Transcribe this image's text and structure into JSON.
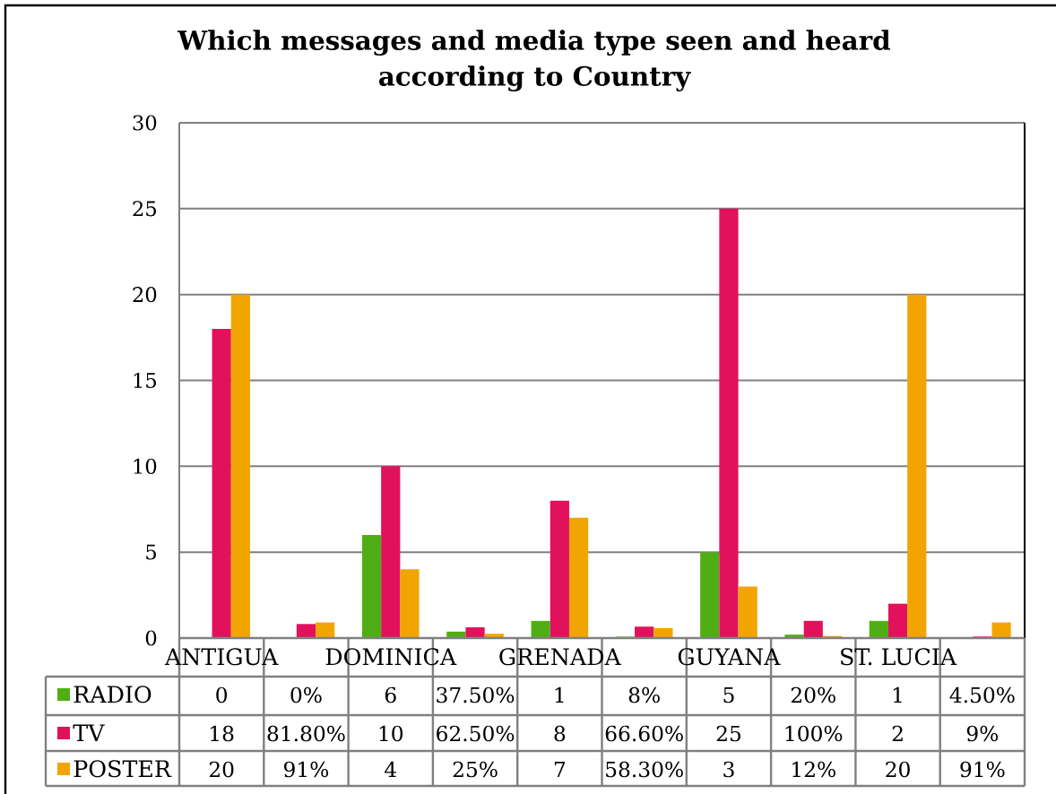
{
  "chart_data": {
    "type": "bar",
    "title": "Which messages and media type seen and heard according to Country",
    "categories": [
      "ANTIGUA",
      null,
      "DOMINICA",
      null,
      "GRENADA",
      null,
      "GUYANA",
      null,
      "ST. LUCIA",
      null
    ],
    "series": [
      {
        "name": "RADIO",
        "color": "#4fae14",
        "values": [
          0,
          0,
          6,
          0.375,
          1,
          0.08,
          5,
          0.2,
          1,
          0.045
        ],
        "value_labels": [
          "0",
          "0%",
          "6",
          "37.50%",
          "1",
          "8%",
          "5",
          "20%",
          "1",
          "4.50%"
        ]
      },
      {
        "name": "TV",
        "color": "#e2115b",
        "values": [
          18,
          0.818,
          10,
          0.625,
          8,
          0.666,
          25,
          1,
          2,
          0.09
        ],
        "value_labels": [
          "18",
          "81.80%",
          "10",
          "62.50%",
          "8",
          "66.60%",
          "25",
          "100%",
          "2",
          "9%"
        ]
      },
      {
        "name": "POSTER",
        "color": "#f2a500",
        "values": [
          20,
          0.91,
          4,
          0.25,
          7,
          0.583,
          3,
          0.12,
          20,
          0.91
        ],
        "value_labels": [
          "20",
          "91%",
          "4",
          "25%",
          "7",
          "58.30%",
          "3",
          "12%",
          "20",
          "91%"
        ]
      }
    ],
    "ylim": [
      0,
      30
    ],
    "yticks": [
      0,
      5,
      10,
      15,
      20,
      25,
      30
    ],
    "grid": "y",
    "legend": "bottom"
  }
}
